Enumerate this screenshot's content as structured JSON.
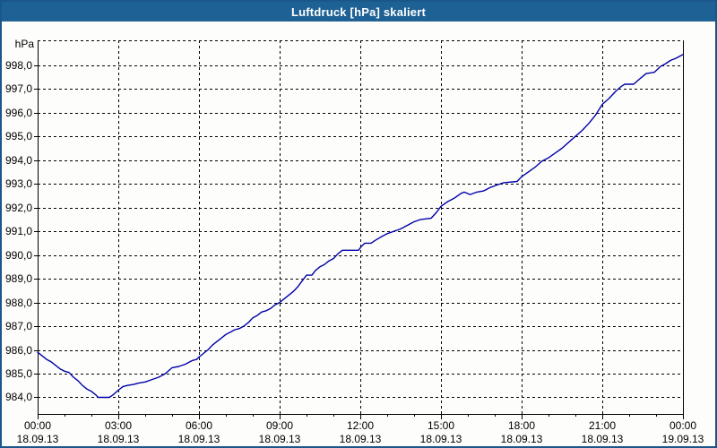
{
  "window": {
    "title": "Luftdruck [hPa] skaliert"
  },
  "colors": {
    "titlebar": "#1e6195",
    "window_border": "#1a568a",
    "curve": "#0000a8",
    "grid": "#000000",
    "axis": "#000000",
    "background": "#fdfdfb",
    "text": "#000000"
  },
  "chart_data": {
    "type": "line",
    "title": "Luftdruck [hPa] skaliert",
    "y_unit_label": "hPa",
    "ylim": [
      983.3,
      999.05
    ],
    "xlim_minutes": [
      0,
      1440
    ],
    "grid": true,
    "x_minor_interval_minutes": 60,
    "x_major_ticks": [
      {
        "time": "00:00",
        "date": "18.09.13",
        "minutes": 0
      },
      {
        "time": "03:00",
        "date": "18.09.13",
        "minutes": 180
      },
      {
        "time": "06:00",
        "date": "18.09.13",
        "minutes": 360
      },
      {
        "time": "09:00",
        "date": "18.09.13",
        "minutes": 540
      },
      {
        "time": "12:00",
        "date": "18.09.13",
        "minutes": 720
      },
      {
        "time": "15:00",
        "date": "18.09.13",
        "minutes": 900
      },
      {
        "time": "18:00",
        "date": "18.09.13",
        "minutes": 1080
      },
      {
        "time": "21:00",
        "date": "18.09.13",
        "minutes": 1260
      },
      {
        "time": "00:00",
        "date": "19.09.13",
        "minutes": 1440
      }
    ],
    "y_ticks": [
      {
        "value": 984.0,
        "label": "984,0"
      },
      {
        "value": 985.0,
        "label": "985,0"
      },
      {
        "value": 986.0,
        "label": "986,0"
      },
      {
        "value": 987.0,
        "label": "987,0"
      },
      {
        "value": 988.0,
        "label": "988,0"
      },
      {
        "value": 989.0,
        "label": "989,0"
      },
      {
        "value": 990.0,
        "label": "990,0"
      },
      {
        "value": 991.0,
        "label": "991,0"
      },
      {
        "value": 992.0,
        "label": "992,0"
      },
      {
        "value": 993.0,
        "label": "993,0"
      },
      {
        "value": 994.0,
        "label": "994,0"
      },
      {
        "value": 995.0,
        "label": "995,0"
      },
      {
        "value": 996.0,
        "label": "996,0"
      },
      {
        "value": 997.0,
        "label": "997,0"
      },
      {
        "value": 998.0,
        "label": "998,0"
      }
    ],
    "series": [
      {
        "name": "Luftdruck",
        "color": "#0000a8",
        "points_minutes_hpa": [
          [
            0,
            985.9
          ],
          [
            10,
            985.75
          ],
          [
            20,
            985.6
          ],
          [
            30,
            985.5
          ],
          [
            40,
            985.35
          ],
          [
            50,
            985.2
          ],
          [
            60,
            985.1
          ],
          [
            70,
            985.05
          ],
          [
            80,
            984.85
          ],
          [
            90,
            984.7
          ],
          [
            100,
            984.5
          ],
          [
            110,
            984.35
          ],
          [
            120,
            984.25
          ],
          [
            130,
            984.1
          ],
          [
            135,
            984.0
          ],
          [
            160,
            984.0
          ],
          [
            168,
            984.1
          ],
          [
            180,
            984.3
          ],
          [
            190,
            984.45
          ],
          [
            200,
            984.5
          ],
          [
            215,
            984.55
          ],
          [
            225,
            984.6
          ],
          [
            240,
            984.65
          ],
          [
            255,
            984.75
          ],
          [
            270,
            984.85
          ],
          [
            285,
            985.0
          ],
          [
            300,
            985.25
          ],
          [
            315,
            985.3
          ],
          [
            330,
            985.4
          ],
          [
            345,
            985.55
          ],
          [
            355,
            985.6
          ],
          [
            360,
            985.7
          ],
          [
            370,
            985.85
          ],
          [
            380,
            986.0
          ],
          [
            390,
            986.2
          ],
          [
            400,
            986.35
          ],
          [
            410,
            986.5
          ],
          [
            420,
            986.65
          ],
          [
            430,
            986.75
          ],
          [
            440,
            986.85
          ],
          [
            450,
            986.9
          ],
          [
            460,
            987.0
          ],
          [
            470,
            987.15
          ],
          [
            480,
            987.35
          ],
          [
            490,
            987.45
          ],
          [
            500,
            987.6
          ],
          [
            510,
            987.65
          ],
          [
            520,
            987.75
          ],
          [
            530,
            987.9
          ],
          [
            540,
            988.0
          ],
          [
            550,
            988.15
          ],
          [
            560,
            988.3
          ],
          [
            570,
            988.45
          ],
          [
            580,
            988.65
          ],
          [
            590,
            988.9
          ],
          [
            600,
            989.15
          ],
          [
            612,
            989.15
          ],
          [
            620,
            989.35
          ],
          [
            630,
            989.5
          ],
          [
            640,
            989.6
          ],
          [
            650,
            989.75
          ],
          [
            660,
            989.85
          ],
          [
            670,
            990.05
          ],
          [
            680,
            990.2
          ],
          [
            716,
            990.2
          ],
          [
            722,
            990.35
          ],
          [
            730,
            990.5
          ],
          [
            744,
            990.5
          ],
          [
            752,
            990.6
          ],
          [
            765,
            990.75
          ],
          [
            780,
            990.9
          ],
          [
            795,
            991.0
          ],
          [
            810,
            991.1
          ],
          [
            825,
            991.25
          ],
          [
            840,
            991.4
          ],
          [
            855,
            991.5
          ],
          [
            878,
            991.55
          ],
          [
            890,
            991.8
          ],
          [
            900,
            992.05
          ],
          [
            915,
            992.25
          ],
          [
            930,
            992.4
          ],
          [
            945,
            992.6
          ],
          [
            952,
            992.65
          ],
          [
            965,
            992.55
          ],
          [
            980,
            992.65
          ],
          [
            995,
            992.7
          ],
          [
            1010,
            992.85
          ],
          [
            1025,
            992.95
          ],
          [
            1040,
            993.05
          ],
          [
            1070,
            993.1
          ],
          [
            1080,
            993.3
          ],
          [
            1095,
            993.5
          ],
          [
            1110,
            993.7
          ],
          [
            1125,
            993.95
          ],
          [
            1140,
            994.1
          ],
          [
            1155,
            994.3
          ],
          [
            1170,
            994.5
          ],
          [
            1185,
            994.75
          ],
          [
            1200,
            995.0
          ],
          [
            1215,
            995.25
          ],
          [
            1230,
            995.55
          ],
          [
            1245,
            995.9
          ],
          [
            1260,
            996.35
          ],
          [
            1275,
            996.6
          ],
          [
            1290,
            996.9
          ],
          [
            1302,
            997.1
          ],
          [
            1310,
            997.2
          ],
          [
            1330,
            997.2
          ],
          [
            1345,
            997.45
          ],
          [
            1358,
            997.65
          ],
          [
            1376,
            997.7
          ],
          [
            1390,
            997.95
          ],
          [
            1400,
            998.05
          ],
          [
            1412,
            998.2
          ],
          [
            1425,
            998.3
          ],
          [
            1440,
            998.45
          ]
        ]
      }
    ]
  }
}
